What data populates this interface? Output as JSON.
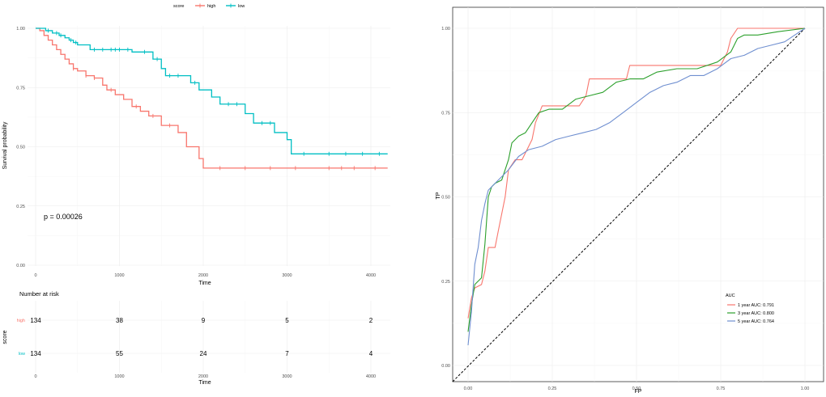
{
  "colors": {
    "high": "#F8766D",
    "low": "#00BFC4",
    "roc_1y": "#F8766D",
    "roc_3y": "#2CA02C",
    "roc_5y": "#6F8FD0",
    "grid": "#EBEBEB",
    "diagonal": "#000000"
  },
  "chart_data": [
    {
      "type": "line",
      "subtype": "kaplan-meier",
      "legend": {
        "title": "score",
        "position": "top",
        "entries": [
          "high",
          "low"
        ]
      },
      "xlabel": "Time",
      "ylabel": "Survival probability",
      "xlim": [
        0,
        4200
      ],
      "ylim": [
        0,
        1
      ],
      "x_ticks": [
        "0",
        "1000",
        "2000",
        "3000",
        "4000"
      ],
      "y_ticks": [
        "0.00",
        "0.25",
        "0.50",
        "0.75",
        "1.00"
      ],
      "grid": true,
      "annotation": "p = 0.00026",
      "series": [
        {
          "name": "high",
          "steps": [
            [
              0,
              1.0
            ],
            [
              50,
              0.99
            ],
            [
              100,
              0.97
            ],
            [
              150,
              0.95
            ],
            [
              200,
              0.93
            ],
            [
              250,
              0.91
            ],
            [
              300,
              0.89
            ],
            [
              350,
              0.87
            ],
            [
              400,
              0.85
            ],
            [
              450,
              0.83
            ],
            [
              500,
              0.82
            ],
            [
              600,
              0.8
            ],
            [
              700,
              0.79
            ],
            [
              800,
              0.76
            ],
            [
              850,
              0.74
            ],
            [
              950,
              0.72
            ],
            [
              1050,
              0.7
            ],
            [
              1150,
              0.67
            ],
            [
              1250,
              0.65
            ],
            [
              1350,
              0.63
            ],
            [
              1500,
              0.59
            ],
            [
              1700,
              0.56
            ],
            [
              1800,
              0.5
            ],
            [
              1950,
              0.45
            ],
            [
              2000,
              0.41
            ],
            [
              4200,
              0.41
            ]
          ],
          "censor_times": [
            450,
            600,
            700,
            900,
            1200,
            1400,
            1600,
            2200,
            2500,
            2800,
            3100,
            3500,
            3650,
            3800,
            4050
          ]
        },
        {
          "name": "low",
          "steps": [
            [
              0,
              1.0
            ],
            [
              120,
              0.99
            ],
            [
              200,
              0.98
            ],
            [
              280,
              0.97
            ],
            [
              350,
              0.96
            ],
            [
              400,
              0.95
            ],
            [
              450,
              0.94
            ],
            [
              500,
              0.93
            ],
            [
              650,
              0.91
            ],
            [
              1150,
              0.9
            ],
            [
              1400,
              0.87
            ],
            [
              1500,
              0.83
            ],
            [
              1550,
              0.8
            ],
            [
              1850,
              0.77
            ],
            [
              1950,
              0.74
            ],
            [
              2100,
              0.71
            ],
            [
              2200,
              0.68
            ],
            [
              2500,
              0.64
            ],
            [
              2600,
              0.6
            ],
            [
              2850,
              0.56
            ],
            [
              3000,
              0.53
            ],
            [
              3050,
              0.47
            ],
            [
              4200,
              0.47
            ]
          ],
          "censor_times": [
            150,
            250,
            300,
            420,
            480,
            700,
            800,
            900,
            950,
            1000,
            1100,
            1300,
            1450,
            1600,
            1700,
            1900,
            2300,
            2400,
            2700,
            2800,
            3200,
            3500,
            3700,
            3900,
            4100
          ]
        }
      ]
    },
    {
      "type": "table",
      "title": "Number at risk",
      "ylabel": "score",
      "xlabel": "Time",
      "x_ticks": [
        "0",
        "1000",
        "2000",
        "3000",
        "4000"
      ],
      "rows": [
        {
          "name": "high",
          "values": [
            "134",
            "38",
            "9",
            "5",
            "2"
          ]
        },
        {
          "name": "low",
          "values": [
            "134",
            "55",
            "24",
            "7",
            "4"
          ]
        }
      ]
    },
    {
      "type": "line",
      "subtype": "roc",
      "xlabel": "FP",
      "ylabel": "TP",
      "xlim": [
        0,
        1
      ],
      "ylim": [
        0,
        1
      ],
      "x_ticks": [
        "0.00",
        "0.25",
        "0.50",
        "0.75",
        "1.00"
      ],
      "y_ticks": [
        "0.00",
        "0.25",
        "0.50",
        "0.75",
        "1.00"
      ],
      "grid": true,
      "legend": {
        "title": "AUC",
        "position": "bottom-right",
        "entries": [
          "1 year AUC: 0.791",
          "3 year AUC: 0.800",
          "5 year AUC: 0.764"
        ]
      },
      "series": [
        {
          "name": "1 year AUC: 0.791",
          "points": [
            [
              0,
              0.14
            ],
            [
              0.01,
              0.2
            ],
            [
              0.02,
              0.23
            ],
            [
              0.04,
              0.24
            ],
            [
              0.05,
              0.28
            ],
            [
              0.06,
              0.35
            ],
            [
              0.08,
              0.35
            ],
            [
              0.09,
              0.4
            ],
            [
              0.11,
              0.5
            ],
            [
              0.12,
              0.58
            ],
            [
              0.14,
              0.61
            ],
            [
              0.16,
              0.61
            ],
            [
              0.19,
              0.67
            ],
            [
              0.2,
              0.72
            ],
            [
              0.22,
              0.77
            ],
            [
              0.26,
              0.77
            ],
            [
              0.3,
              0.77
            ],
            [
              0.33,
              0.77
            ],
            [
              0.35,
              0.8
            ],
            [
              0.36,
              0.85
            ],
            [
              0.4,
              0.85
            ],
            [
              0.47,
              0.85
            ],
            [
              0.48,
              0.89
            ],
            [
              0.56,
              0.89
            ],
            [
              0.68,
              0.89
            ],
            [
              0.75,
              0.89
            ],
            [
              0.77,
              0.93
            ],
            [
              0.78,
              0.97
            ],
            [
              0.8,
              1.0
            ],
            [
              0.85,
              1.0
            ],
            [
              0.92,
              1.0
            ],
            [
              1.0,
              1.0
            ]
          ]
        },
        {
          "name": "3 year AUC: 0.800",
          "points": [
            [
              0,
              0.1
            ],
            [
              0.01,
              0.18
            ],
            [
              0.02,
              0.24
            ],
            [
              0.04,
              0.26
            ],
            [
              0.05,
              0.36
            ],
            [
              0.06,
              0.5
            ],
            [
              0.07,
              0.53
            ],
            [
              0.08,
              0.54
            ],
            [
              0.1,
              0.55
            ],
            [
              0.12,
              0.61
            ],
            [
              0.13,
              0.66
            ],
            [
              0.15,
              0.68
            ],
            [
              0.17,
              0.69
            ],
            [
              0.19,
              0.72
            ],
            [
              0.21,
              0.75
            ],
            [
              0.24,
              0.76
            ],
            [
              0.28,
              0.76
            ],
            [
              0.32,
              0.79
            ],
            [
              0.36,
              0.8
            ],
            [
              0.4,
              0.81
            ],
            [
              0.44,
              0.84
            ],
            [
              0.48,
              0.85
            ],
            [
              0.52,
              0.85
            ],
            [
              0.56,
              0.87
            ],
            [
              0.62,
              0.88
            ],
            [
              0.68,
              0.88
            ],
            [
              0.74,
              0.9
            ],
            [
              0.78,
              0.93
            ],
            [
              0.8,
              0.97
            ],
            [
              0.82,
              0.98
            ],
            [
              0.86,
              0.98
            ],
            [
              0.92,
              0.99
            ],
            [
              1.0,
              1.0
            ]
          ]
        },
        {
          "name": "5 year AUC: 0.764",
          "points": [
            [
              0,
              0.06
            ],
            [
              0.01,
              0.16
            ],
            [
              0.02,
              0.3
            ],
            [
              0.03,
              0.35
            ],
            [
              0.04,
              0.43
            ],
            [
              0.05,
              0.48
            ],
            [
              0.06,
              0.52
            ],
            [
              0.08,
              0.54
            ],
            [
              0.1,
              0.56
            ],
            [
              0.12,
              0.58
            ],
            [
              0.15,
              0.62
            ],
            [
              0.18,
              0.64
            ],
            [
              0.22,
              0.65
            ],
            [
              0.26,
              0.67
            ],
            [
              0.3,
              0.68
            ],
            [
              0.34,
              0.69
            ],
            [
              0.38,
              0.7
            ],
            [
              0.42,
              0.72
            ],
            [
              0.46,
              0.75
            ],
            [
              0.5,
              0.78
            ],
            [
              0.54,
              0.81
            ],
            [
              0.58,
              0.83
            ],
            [
              0.62,
              0.84
            ],
            [
              0.66,
              0.86
            ],
            [
              0.7,
              0.86
            ],
            [
              0.74,
              0.88
            ],
            [
              0.78,
              0.91
            ],
            [
              0.82,
              0.92
            ],
            [
              0.86,
              0.94
            ],
            [
              0.9,
              0.95
            ],
            [
              0.94,
              0.96
            ],
            [
              0.97,
              0.98
            ],
            [
              1.0,
              1.0
            ]
          ]
        }
      ]
    }
  ]
}
